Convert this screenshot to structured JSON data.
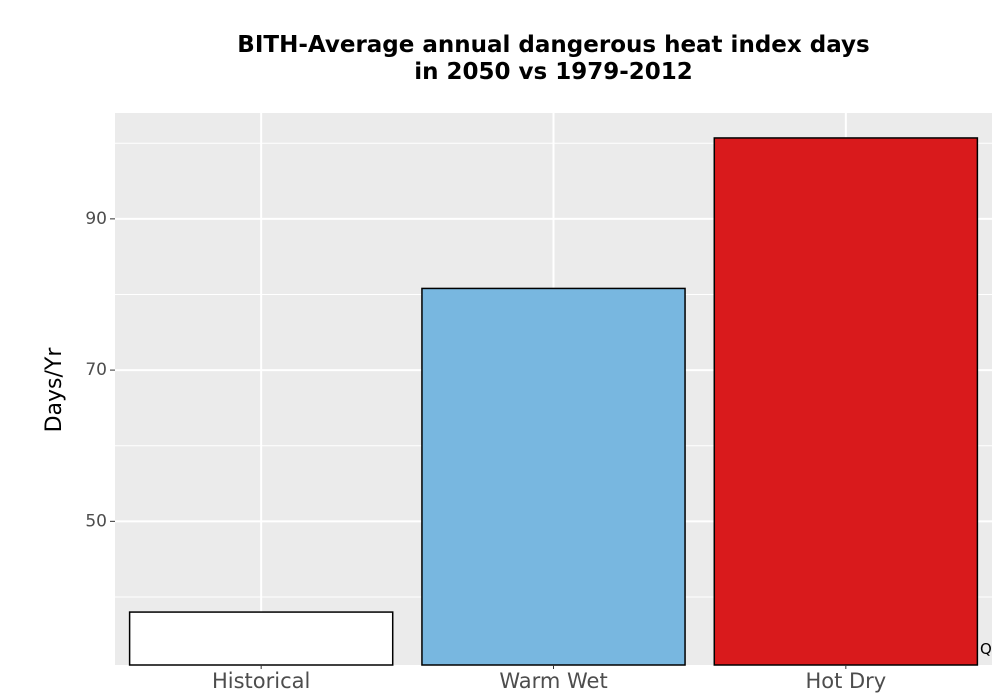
{
  "chart_data": {
    "type": "bar",
    "title_lines": [
      "BITH-Average annual dangerous heat index days",
      "in 2050 vs 1979-2012"
    ],
    "categories": [
      "Historical",
      "Warm Wet",
      "Hot Dry"
    ],
    "values": [
      38,
      80.8,
      100.7
    ],
    "colors": [
      "#ffffff",
      "#78b7e0",
      "#d91a1c"
    ],
    "bar_outline": "#000000",
    "xlabel": "",
    "ylabel": "Days/Yr",
    "ylim": [
      31,
      104
    ],
    "yticks": [
      50,
      70,
      90
    ],
    "yticks_minor": [
      40,
      60,
      80,
      100
    ],
    "grid": true,
    "panel_background": "#ebebeb",
    "gridline_color": "#ffffff",
    "corner_note": "Q"
  }
}
